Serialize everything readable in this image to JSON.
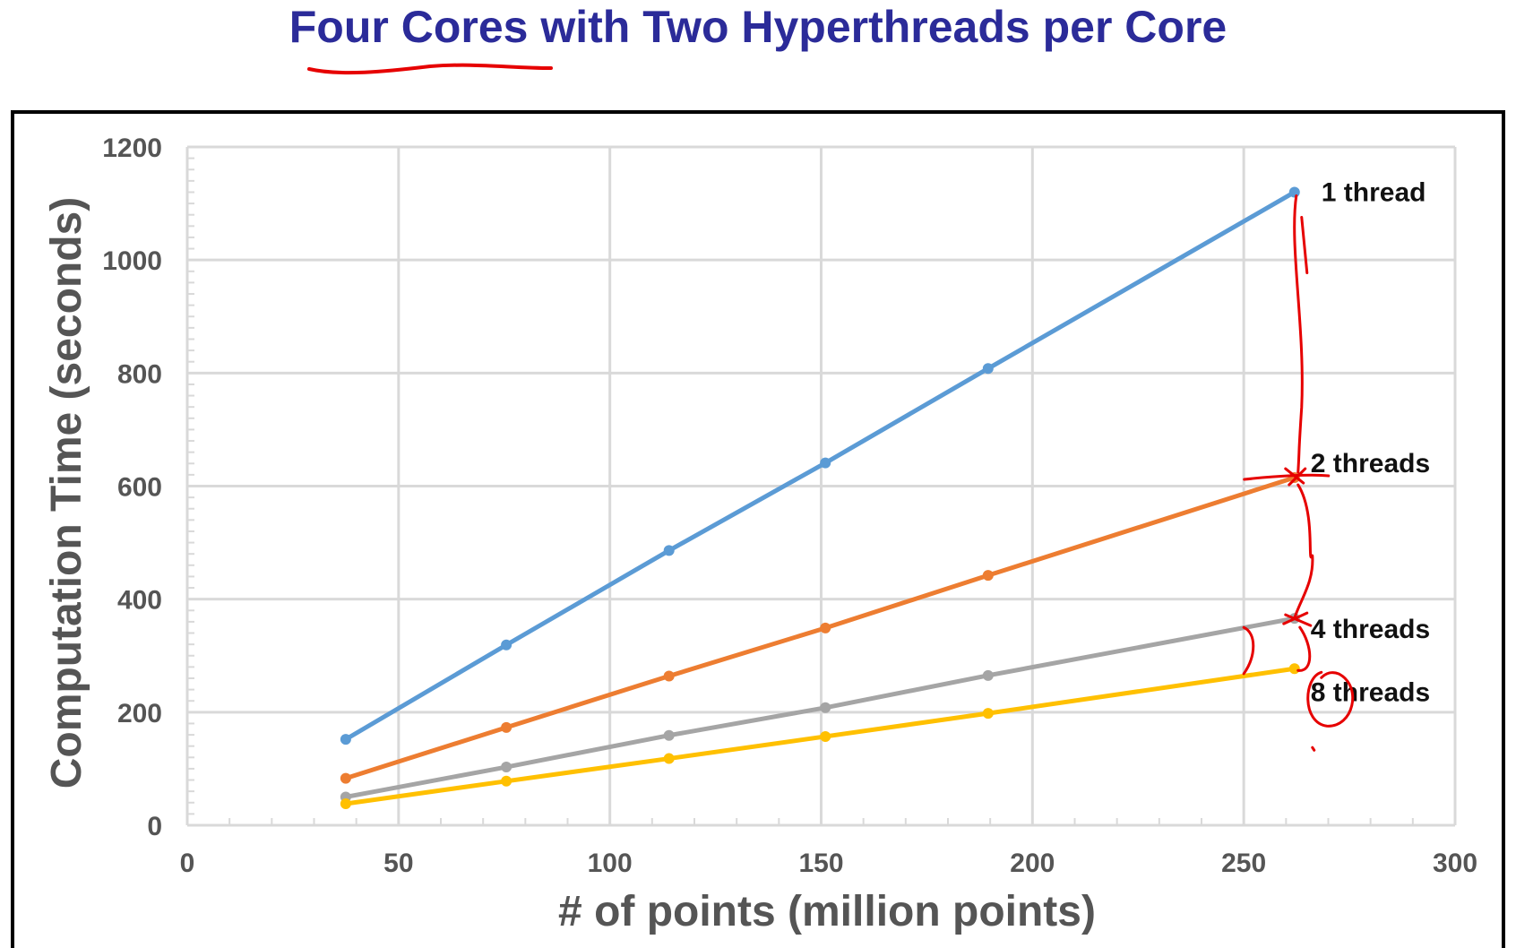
{
  "slide": {
    "title": "Four Cores with Two Hyperthreads per Core"
  },
  "colors": {
    "title": "#2b2b99",
    "annotation": "#e60000",
    "grid": "#d9d9d9",
    "frame": "#000000"
  },
  "chart_data": {
    "type": "line",
    "title": "",
    "xlabel": "# of points (million points)",
    "ylabel": "Computation Time (seconds)",
    "xlim": [
      0,
      300
    ],
    "ylim": [
      0,
      1200
    ],
    "xticks": [
      0,
      50,
      100,
      150,
      200,
      250,
      300
    ],
    "yticks": [
      0,
      200,
      400,
      600,
      800,
      1000,
      1200
    ],
    "grid": true,
    "legend": "none",
    "x": [
      37.5,
      75.5,
      114,
      151,
      189.5,
      262
    ],
    "series": [
      {
        "name": "1 thread",
        "color": "#5b9bd5",
        "values": [
          152,
          319,
          486,
          641,
          808,
          1120
        ]
      },
      {
        "name": "2 threads",
        "color": "#ed7d31",
        "values": [
          83,
          173,
          264,
          349,
          442,
          615
        ]
      },
      {
        "name": "4 threads",
        "color": "#a5a5a5",
        "values": [
          50,
          103,
          159,
          208,
          265,
          366
        ]
      },
      {
        "name": "8 threads",
        "color": "#ffc000",
        "values": [
          38,
          78,
          118,
          157,
          198,
          277
        ]
      }
    ]
  }
}
